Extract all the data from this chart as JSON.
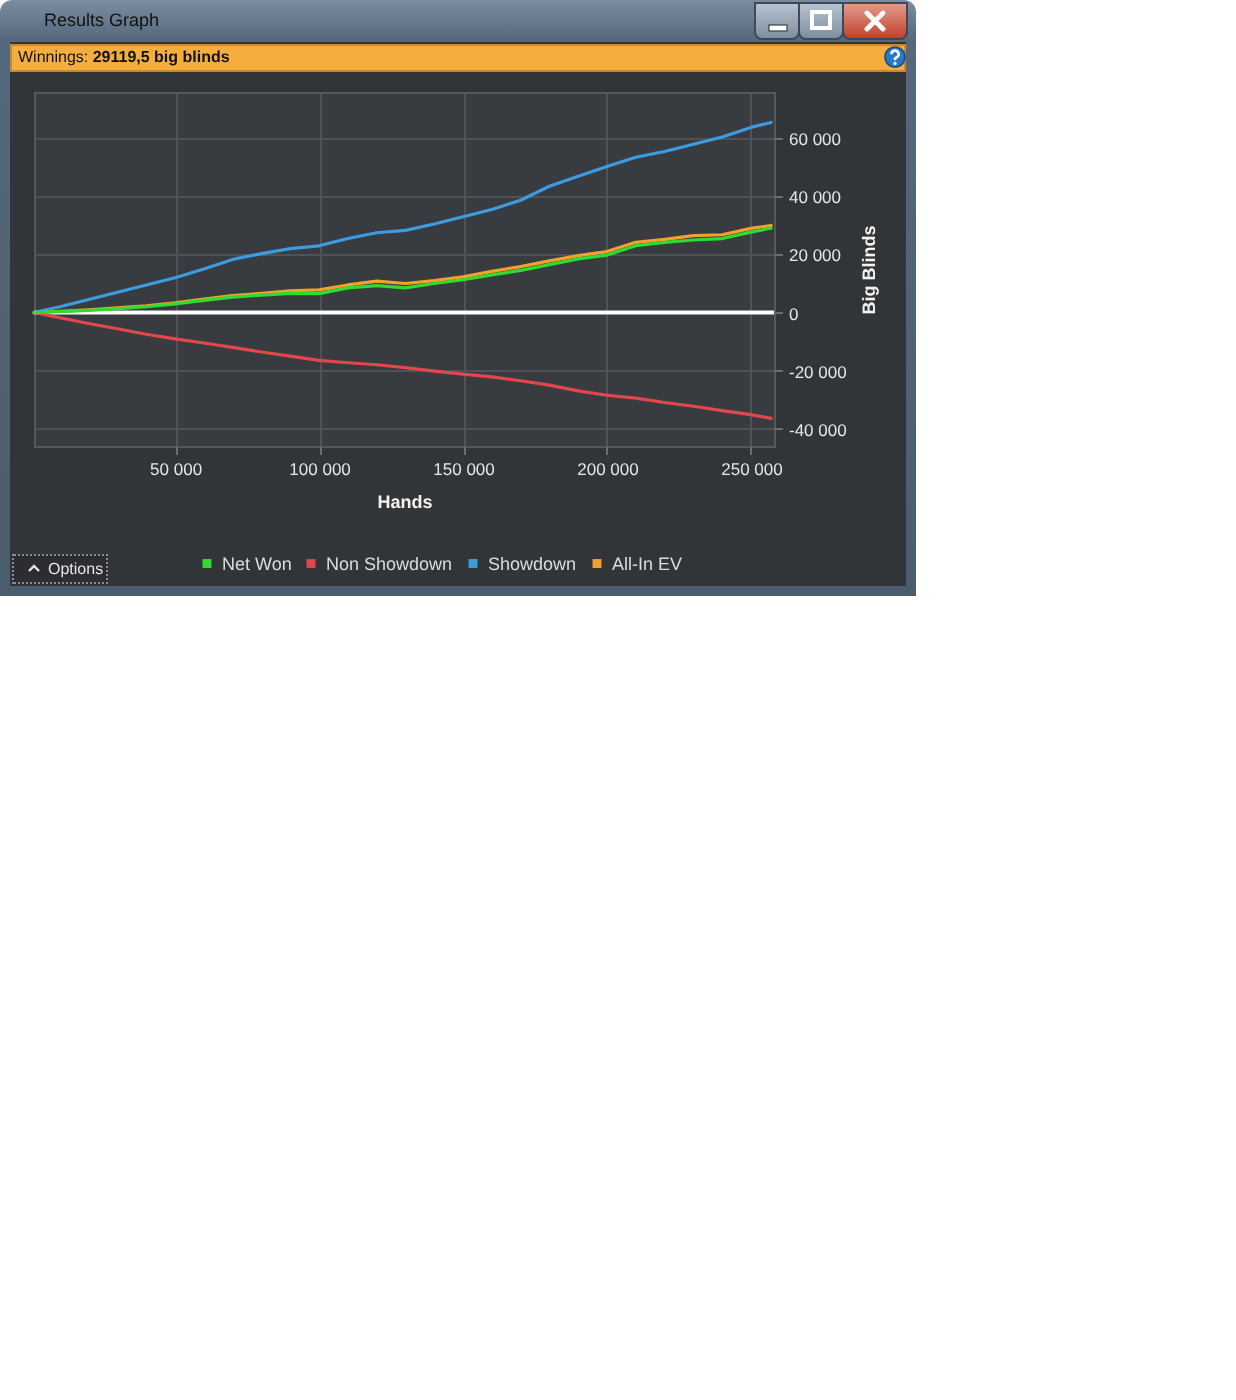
{
  "chart_data": {
    "type": "line",
    "title": "Results Graph",
    "subtitle": "Winnings: 29119,5 big blinds",
    "xlabel": "Hands",
    "ylabel": "Big Blinds",
    "x": [
      1000,
      10000,
      20000,
      30000,
      40000,
      50000,
      60000,
      70000,
      80000,
      90000,
      100000,
      110000,
      120000,
      130000,
      140000,
      150000,
      160000,
      170000,
      180000,
      190000,
      200000,
      210000,
      220000,
      230000,
      240000,
      250000,
      257000
    ],
    "series": [
      {
        "name": "Net Won",
        "color": "#2fdc2f",
        "values": [
          0,
          300,
          700,
          1300,
          2000,
          3000,
          4200,
          5300,
          6000,
          6600,
          6500,
          8500,
          9300,
          8500,
          10000,
          11300,
          13000,
          14500,
          16500,
          18500,
          19800,
          23000,
          24200,
          25000,
          25500,
          27700,
          29100
        ]
      },
      {
        "name": "Non Showdown",
        "color": "#e2474c",
        "values": [
          0,
          -1800,
          -3800,
          -5600,
          -7500,
          -9100,
          -10500,
          -12000,
          -13600,
          -15000,
          -16500,
          -17300,
          -18000,
          -19000,
          -20200,
          -21200,
          -22200,
          -23500,
          -25000,
          -27000,
          -28500,
          -29500,
          -31000,
          -32300,
          -33800,
          -35200,
          -36500
        ]
      },
      {
        "name": "Showdown",
        "color": "#3d9ce0",
        "values": [
          0,
          2000,
          4500,
          7000,
          9500,
          12000,
          15000,
          18300,
          20300,
          22000,
          23000,
          25500,
          27500,
          28300,
          30500,
          33000,
          35500,
          38700,
          43500,
          47000,
          50300,
          53500,
          55500,
          58000,
          60500,
          63800,
          65500
        ]
      },
      {
        "name": "All-In EV",
        "color": "#f4a12c",
        "values": [
          0,
          400,
          900,
          1600,
          2300,
          3300,
          4600,
          5800,
          6600,
          7500,
          7800,
          9500,
          10800,
          10000,
          11000,
          12300,
          14200,
          15800,
          17800,
          19600,
          21000,
          24200,
          25200,
          26500,
          26800,
          29000,
          30000
        ]
      }
    ],
    "xlim": [
      1000,
      258000
    ],
    "ylim": [
      -46000,
      76000
    ],
    "xticks": [
      {
        "value": 50000,
        "label": "50 000"
      },
      {
        "value": 100000,
        "label": "100 000"
      },
      {
        "value": 150000,
        "label": "150 000"
      },
      {
        "value": 200000,
        "label": "200 000"
      },
      {
        "value": 250000,
        "label": "250 000"
      }
    ],
    "yticks": [
      {
        "value": -40000,
        "label": "-40 000"
      },
      {
        "value": -20000,
        "label": "-20 000"
      },
      0,
      {
        "value": 20000,
        "label": "20 000"
      },
      {
        "value": 40000,
        "label": "40 000"
      },
      {
        "value": 60000,
        "label": "60 000"
      }
    ],
    "grid": true,
    "legend": "bottom",
    "ref_lines": [
      {
        "axis": "y",
        "value": 0,
        "color": "#ffffff"
      }
    ],
    "annotations": [
      "Options"
    ]
  }
}
